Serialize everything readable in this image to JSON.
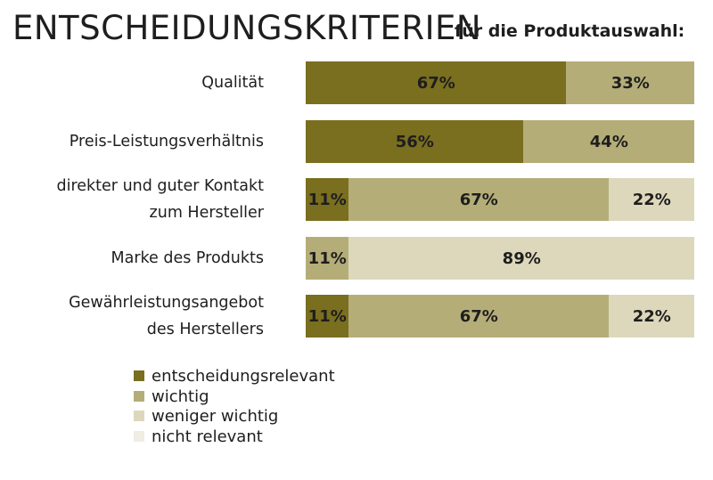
{
  "chart_data": {
    "type": "bar",
    "orientation": "horizontal",
    "stacked": true,
    "title": "ENTSCHEIDUNGSKRITERIEN",
    "subtitle": "für die Produktauswahl:",
    "categories": [
      [
        "Qualität"
      ],
      [
        "Preis-Leistungsverhältnis"
      ],
      [
        "direkter und guter Kontakt",
        "zum Hersteller"
      ],
      [
        "Marke des Produkts"
      ],
      [
        "Gewährleistungsangebot",
        "des Herstellers"
      ]
    ],
    "series": [
      {
        "name": "entscheidungsrelevant",
        "color": "#7a6e1f",
        "values": [
          67,
          56,
          11,
          0,
          11
        ]
      },
      {
        "name": "wichtig",
        "color": "#b5ad78",
        "values": [
          33,
          44,
          67,
          11,
          67
        ]
      },
      {
        "name": "weniger wichtig",
        "color": "#ddd8bb",
        "values": [
          0,
          0,
          22,
          89,
          22
        ]
      },
      {
        "name": "nicht relevant",
        "color": "#efede4",
        "values": [
          0,
          0,
          0,
          0,
          0
        ]
      }
    ],
    "value_suffix": "%",
    "xlim": [
      0,
      100
    ],
    "legend_position": "bottom-left"
  }
}
